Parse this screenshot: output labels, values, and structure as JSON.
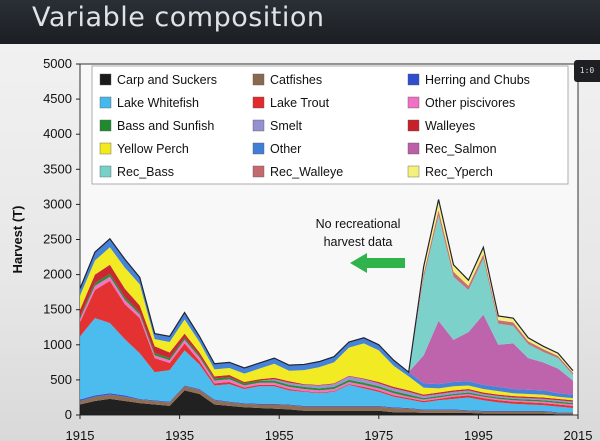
{
  "slide": {
    "title": "Variable composition"
  },
  "side_tab": {
    "label": "1:0"
  },
  "chart_data": {
    "type": "area",
    "stacked": true,
    "title": "",
    "xlabel": "",
    "ylabel": "Harvest (T)",
    "xlim": [
      1915,
      2015
    ],
    "ylim": [
      0,
      5000
    ],
    "x_ticks": [
      1915,
      1935,
      1955,
      1975,
      1995,
      2015
    ],
    "y_ticks": [
      0,
      500,
      1000,
      1500,
      2000,
      2500,
      3000,
      3500,
      4000,
      4500,
      5000
    ],
    "legend_position": "top",
    "annotation": {
      "lines": [
        "No recreational",
        "harvest data"
      ],
      "arrow_color": "#2fb34a"
    },
    "x": [
      1915,
      1918,
      1921,
      1924,
      1927,
      1930,
      1933,
      1936,
      1939,
      1942,
      1945,
      1948,
      1951,
      1954,
      1957,
      1960,
      1963,
      1966,
      1969,
      1972,
      1975,
      1978,
      1981,
      1984,
      1987,
      1990,
      1993,
      1996,
      1999,
      2002,
      2005,
      2008,
      2011,
      2014
    ],
    "series": [
      {
        "name": "Carp and Suckers",
        "color": "#1a1a1a",
        "values": [
          150,
          200,
          230,
          200,
          170,
          150,
          130,
          350,
          300,
          150,
          130,
          110,
          100,
          90,
          80,
          60,
          60,
          60,
          60,
          60,
          60,
          40,
          40,
          30,
          30,
          30,
          30,
          20,
          20,
          20,
          20,
          20,
          10,
          10
        ]
      },
      {
        "name": "Catfishes",
        "color": "#8a6a4f",
        "values": [
          50,
          60,
          60,
          60,
          50,
          50,
          50,
          60,
          60,
          60,
          50,
          50,
          50,
          60,
          60,
          60,
          60,
          60,
          60,
          60,
          60,
          60,
          50,
          40,
          40,
          40,
          30,
          30,
          30,
          30,
          30,
          30,
          20,
          20
        ]
      },
      {
        "name": "Herring and Chubs",
        "color": "#2d4fcf",
        "values": [
          20,
          20,
          20,
          20,
          10,
          10,
          10,
          10,
          10,
          10,
          10,
          10,
          10,
          10,
          10,
          10,
          10,
          10,
          10,
          10,
          10,
          10,
          10,
          10,
          10,
          10,
          10,
          10,
          10,
          10,
          10,
          10,
          10,
          10
        ]
      },
      {
        "name": "Lake Whitefish",
        "color": "#46b9ec",
        "values": [
          900,
          1100,
          1000,
          800,
          650,
          400,
          450,
          500,
          350,
          200,
          250,
          200,
          250,
          250,
          200,
          200,
          180,
          200,
          300,
          250,
          200,
          150,
          120,
          100,
          130,
          150,
          180,
          150,
          120,
          100,
          90,
          80,
          80,
          60
        ]
      },
      {
        "name": "Lake Trout",
        "color": "#e32b2b",
        "values": [
          200,
          400,
          600,
          500,
          500,
          200,
          100,
          100,
          50,
          30,
          30,
          20,
          20,
          20,
          20,
          10,
          10,
          10,
          10,
          20,
          20,
          20,
          20,
          20,
          20,
          30,
          30,
          30,
          30,
          30,
          30,
          30,
          30,
          30
        ]
      },
      {
        "name": "Other piscivores",
        "color": "#f070c6",
        "values": [
          50,
          60,
          60,
          60,
          50,
          40,
          40,
          50,
          50,
          40,
          40,
          30,
          30,
          30,
          30,
          30,
          30,
          30,
          30,
          30,
          30,
          30,
          20,
          20,
          20,
          20,
          20,
          20,
          20,
          20,
          20,
          20,
          20,
          20
        ]
      },
      {
        "name": "Bass and Sunfish",
        "color": "#1f8a2c",
        "values": [
          30,
          40,
          40,
          40,
          30,
          30,
          30,
          30,
          30,
          30,
          30,
          30,
          30,
          30,
          30,
          30,
          30,
          30,
          30,
          30,
          30,
          30,
          30,
          20,
          20,
          20,
          20,
          20,
          20,
          20,
          20,
          20,
          20,
          20
        ]
      },
      {
        "name": "Smelt",
        "color": "#9590cf",
        "values": [
          0,
          0,
          0,
          0,
          0,
          0,
          0,
          0,
          0,
          0,
          0,
          0,
          0,
          20,
          30,
          30,
          40,
          40,
          50,
          50,
          40,
          40,
          40,
          30,
          30,
          30,
          30,
          20,
          20,
          20,
          20,
          20,
          20,
          20
        ]
      },
      {
        "name": "Walleyes",
        "color": "#c8202b",
        "values": [
          100,
          120,
          130,
          120,
          100,
          100,
          80,
          60,
          40,
          30,
          30,
          20,
          20,
          20,
          20,
          10,
          10,
          10,
          10,
          10,
          20,
          20,
          20,
          20,
          20,
          20,
          20,
          20,
          20,
          20,
          20,
          20,
          20,
          20
        ]
      },
      {
        "name": "Yellow Perch",
        "color": "#f2ea1c",
        "values": [
          200,
          200,
          250,
          300,
          300,
          100,
          150,
          200,
          150,
          100,
          100,
          120,
          150,
          200,
          150,
          200,
          250,
          300,
          400,
          500,
          450,
          300,
          200,
          100,
          60,
          60,
          50,
          50,
          50,
          40,
          40,
          40,
          30,
          30
        ]
      },
      {
        "name": "Other",
        "color": "#3f7fd8",
        "values": [
          100,
          120,
          120,
          120,
          100,
          80,
          80,
          100,
          80,
          80,
          80,
          80,
          80,
          80,
          80,
          80,
          80,
          80,
          80,
          80,
          80,
          80,
          60,
          60,
          60,
          60,
          60,
          60,
          60,
          60,
          60,
          60,
          50,
          50
        ]
      },
      {
        "name": "Rec_Salmon",
        "color": "#bb5fa9",
        "values": [
          0,
          0,
          0,
          0,
          0,
          0,
          0,
          0,
          0,
          0,
          0,
          0,
          0,
          0,
          0,
          0,
          0,
          0,
          0,
          0,
          0,
          0,
          0,
          400,
          900,
          600,
          700,
          1000,
          600,
          650,
          450,
          400,
          350,
          200
        ]
      },
      {
        "name": "Rec_Bass",
        "color": "#78d1c9",
        "values": [
          0,
          0,
          0,
          0,
          0,
          0,
          0,
          0,
          0,
          0,
          0,
          0,
          0,
          0,
          0,
          0,
          0,
          0,
          0,
          0,
          0,
          0,
          0,
          1100,
          1500,
          900,
          600,
          800,
          300,
          250,
          200,
          150,
          150,
          80
        ]
      },
      {
        "name": "Rec_Walleye",
        "color": "#c46a6f",
        "values": [
          0,
          0,
          0,
          0,
          0,
          0,
          0,
          0,
          0,
          0,
          0,
          0,
          0,
          0,
          0,
          0,
          0,
          0,
          0,
          0,
          0,
          0,
          0,
          60,
          80,
          70,
          60,
          60,
          50,
          50,
          40,
          40,
          30,
          30
        ]
      },
      {
        "name": "Rec_Yperch",
        "color": "#f5f07a",
        "values": [
          0,
          0,
          0,
          0,
          0,
          0,
          0,
          0,
          0,
          0,
          0,
          0,
          0,
          0,
          0,
          0,
          0,
          0,
          0,
          0,
          0,
          0,
          0,
          100,
          150,
          100,
          80,
          100,
          60,
          60,
          50,
          40,
          40,
          30
        ]
      }
    ]
  }
}
